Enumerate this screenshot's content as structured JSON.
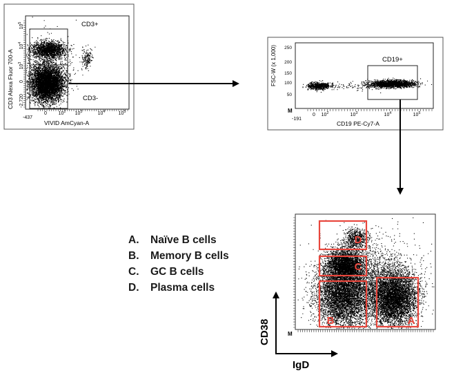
{
  "plots": {
    "cd3": {
      "gate_pos_label": "CD3+",
      "gate_neg_label": "CD3-",
      "ylabel": "CD3 Alexa Fluor 700-A",
      "xlabel": "VIVID AmCyan-A",
      "y_ticks": [
        "10^5",
        "10^4",
        "10^3",
        "0",
        "-2,720"
      ],
      "x_ticks": [
        "-437",
        "0",
        "10^2",
        "10^3",
        "10^4",
        "10^5"
      ]
    },
    "cd19": {
      "gate_label": "CD19+",
      "ylabel": "FSC-W (x 1,000)",
      "xlabel": "CD19 PE-Cy7-A",
      "y_ticks": [
        "250",
        "200",
        "150",
        "100",
        "50"
      ],
      "x_ticks": [
        "-191",
        "0",
        "10^2",
        "10^3",
        "10^4",
        "10^5"
      ],
      "origin_label": "M"
    },
    "cd38": {
      "ylabel": "CD38",
      "xlabel": "IgD",
      "origin_label": "M",
      "gates": [
        {
          "letter": "D"
        },
        {
          "letter": "C"
        },
        {
          "letter": "B"
        },
        {
          "letter": "A"
        }
      ],
      "gate_color": "#e8463c"
    }
  },
  "legend": [
    {
      "letter": "A.",
      "label": "Naïve B cells"
    },
    {
      "letter": "B.",
      "label": "Memory B cells"
    },
    {
      "letter": "C.",
      "label": "GC B cells"
    },
    {
      "letter": "D.",
      "label": "Plasma cells"
    }
  ]
}
